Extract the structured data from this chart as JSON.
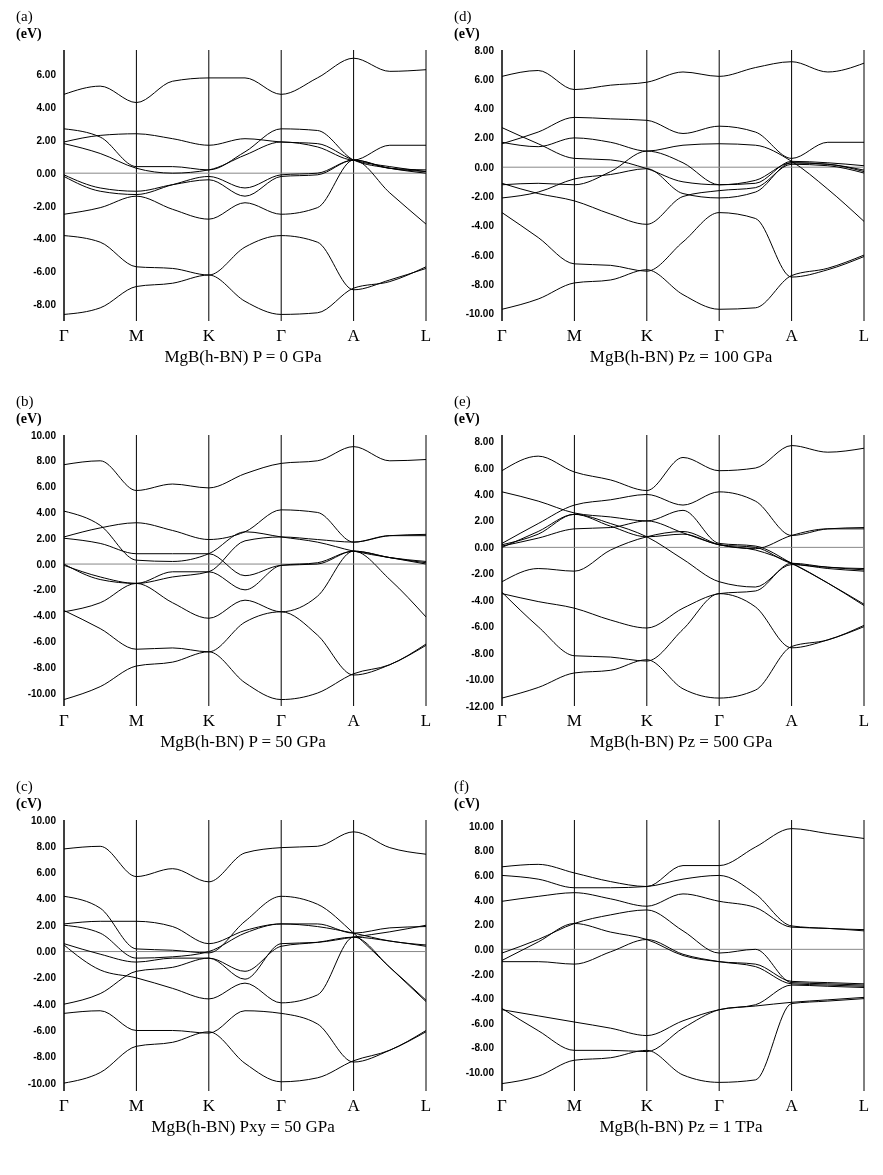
{
  "chart_data": [
    {
      "type": "line",
      "title": "(a)",
      "ylabel": "(eV)",
      "xlabel": "MgB(h-BN) P = 0 GPa",
      "categories": [
        "Γ",
        null,
        "M",
        null,
        "K",
        null,
        "Γ",
        null,
        "A",
        null,
        "L"
      ],
      "ylim": [
        -9,
        7.5
      ],
      "yticks": [
        {
          "value": -8,
          "label": "-8.00"
        },
        {
          "value": -6,
          "label": "-6.00"
        },
        {
          "value": -4,
          "label": "-4.00"
        },
        {
          "value": -2,
          "label": "-2.00"
        },
        {
          "value": 0,
          "label": "0.00"
        },
        {
          "value": 2,
          "label": "2.00"
        },
        {
          "value": 4,
          "label": "4.00"
        },
        {
          "value": 6,
          "label": "6.00"
        }
      ],
      "grid": "x",
      "marker": "none",
      "line_style": "solid",
      "ref_lines": [
        {
          "axis": "y",
          "value": 0,
          "color": "#888888"
        }
      ],
      "series": [
        {
          "color": "#000000",
          "values": [
            4.8,
            5.3,
            4.3,
            5.6,
            5.8,
            5.8,
            4.8,
            5.8,
            7.0,
            6.2,
            6.3
          ]
        },
        {
          "color": "#000000",
          "values": [
            1.9,
            2.3,
            2.4,
            2.1,
            1.7,
            2.1,
            1.9,
            1.8,
            0.8,
            0.4,
            0.1
          ]
        },
        {
          "color": "#000000",
          "values": [
            2.7,
            2.2,
            0.4,
            0.4,
            0.2,
            1.3,
            2.7,
            2.6,
            0.8,
            0.3,
            0.0
          ]
        },
        {
          "color": "#000000",
          "values": [
            1.8,
            1.2,
            0.3,
            0.0,
            0.2,
            1.1,
            1.9,
            1.6,
            0.8,
            1.7,
            1.7
          ]
        },
        {
          "color": "#000000",
          "values": [
            -0.2,
            -1.1,
            -1.3,
            -0.7,
            -0.2,
            -0.9,
            -0.1,
            0.0,
            0.8,
            0.3,
            0.1
          ]
        },
        {
          "color": "#000000",
          "values": [
            -0.1,
            -0.9,
            -1.1,
            -0.7,
            -0.4,
            -1.4,
            -0.2,
            -0.1,
            0.8,
            -1.2,
            -3.1
          ]
        },
        {
          "color": "#000000",
          "values": [
            -2.5,
            -2.1,
            -1.4,
            -2.2,
            -2.8,
            -1.8,
            -2.5,
            -2.1,
            0.8,
            0.3,
            0.2
          ]
        },
        {
          "color": "#000000",
          "values": [
            -3.8,
            -4.2,
            -5.7,
            -5.8,
            -6.2,
            -4.5,
            -3.8,
            -4.2,
            -7.1,
            -6.5,
            -5.8
          ]
        },
        {
          "color": "#000000",
          "values": [
            -8.6,
            -8.2,
            -6.9,
            -6.7,
            -6.2,
            -7.8,
            -8.6,
            -8.5,
            -7.0,
            -6.6,
            -5.7
          ]
        }
      ]
    },
    {
      "type": "line",
      "title": "(d)",
      "ylabel": "(eV)",
      "xlabel": "MgB(h-BN) Pz = 100 GPa",
      "categories": [
        "Γ",
        null,
        "M",
        null,
        "K",
        null,
        "Γ",
        null,
        "A",
        null,
        "L"
      ],
      "ylim": [
        -10.5,
        8
      ],
      "yticks": [
        {
          "value": -10,
          "label": "-10.00"
        },
        {
          "value": -8,
          "label": "-8.00"
        },
        {
          "value": -6,
          "label": "-6.00"
        },
        {
          "value": -4,
          "label": "-4.00"
        },
        {
          "value": -2,
          "label": "-2.00"
        },
        {
          "value": 0,
          "label": "0.00"
        },
        {
          "value": 2,
          "label": "2.00"
        },
        {
          "value": 4,
          "label": "4.00"
        },
        {
          "value": 6,
          "label": "6.00"
        },
        {
          "value": 8,
          "label": "8.00"
        }
      ],
      "grid": "x",
      "marker": "none",
      "line_style": "solid",
      "ref_lines": [
        {
          "axis": "y",
          "value": 0,
          "color": "#888888"
        }
      ],
      "series": [
        {
          "color": "#000000",
          "values": [
            6.2,
            6.6,
            5.3,
            5.6,
            5.8,
            6.5,
            6.2,
            6.8,
            7.2,
            6.5,
            7.1
          ]
        },
        {
          "color": "#000000",
          "values": [
            1.6,
            2.4,
            3.4,
            3.3,
            3.2,
            2.3,
            2.8,
            2.4,
            0.6,
            1.7,
            1.7
          ]
        },
        {
          "color": "#000000",
          "values": [
            2.7,
            1.6,
            0.6,
            0.5,
            -0.1,
            -1.0,
            -1.2,
            -0.9,
            0.3,
            0.2,
            -0.2
          ]
        },
        {
          "color": "#000000",
          "values": [
            1.7,
            1.4,
            2.0,
            1.7,
            1.1,
            1.5,
            1.6,
            1.5,
            0.4,
            -1.5,
            -3.7
          ]
        },
        {
          "color": "#000000",
          "values": [
            -1.2,
            -1.1,
            -1.2,
            -0.3,
            1.1,
            0.3,
            -1.2,
            -1.1,
            0.4,
            0.3,
            0.1
          ]
        },
        {
          "color": "#000000",
          "values": [
            -2.1,
            -1.7,
            -0.8,
            -0.5,
            -0.1,
            -1.8,
            -2.1,
            -1.7,
            0.3,
            0.2,
            -0.3
          ]
        },
        {
          "color": "#000000",
          "values": [
            -1.1,
            -1.8,
            -2.3,
            -3.2,
            -3.9,
            -2.0,
            -1.6,
            -1.4,
            0.2,
            0.1,
            -0.4
          ]
        },
        {
          "color": "#000000",
          "values": [
            -3.1,
            -4.8,
            -6.6,
            -6.7,
            -7.1,
            -5.1,
            -3.1,
            -3.5,
            -7.5,
            -7.0,
            -6.1
          ]
        },
        {
          "color": "#000000",
          "values": [
            -9.7,
            -9.0,
            -7.9,
            -7.7,
            -7.0,
            -8.7,
            -9.7,
            -9.6,
            -7.4,
            -6.9,
            -6.0
          ]
        }
      ]
    },
    {
      "type": "line",
      "title": "(b)",
      "ylabel": "(eV)",
      "xlabel": "MgB(h-BN) P = 50 GPa",
      "categories": [
        "Γ",
        null,
        "M",
        null,
        "K",
        null,
        "Γ",
        null,
        "A",
        null,
        "L"
      ],
      "ylim": [
        -11,
        10
      ],
      "yticks": [
        {
          "value": -10,
          "label": "-10.00"
        },
        {
          "value": -8,
          "label": "-8.00"
        },
        {
          "value": -6,
          "label": "-6.00"
        },
        {
          "value": -4,
          "label": "-4.00"
        },
        {
          "value": -2,
          "label": "-2.00"
        },
        {
          "value": 0,
          "label": "0.00"
        },
        {
          "value": 2,
          "label": "2.00"
        },
        {
          "value": 4,
          "label": "4.00"
        },
        {
          "value": 6,
          "label": "6.00"
        },
        {
          "value": 8,
          "label": "8.00"
        },
        {
          "value": 10,
          "label": "10.00"
        }
      ],
      "grid": "x",
      "marker": "none",
      "line_style": "solid",
      "ref_lines": [
        {
          "axis": "y",
          "value": 0,
          "color": "#888888"
        }
      ],
      "series": [
        {
          "color": "#000000",
          "values": [
            7.7,
            8.0,
            5.7,
            6.2,
            5.9,
            7.0,
            7.8,
            8.0,
            9.1,
            8.0,
            8.1
          ]
        },
        {
          "color": "#000000",
          "values": [
            2.1,
            2.8,
            3.2,
            2.6,
            1.9,
            2.5,
            4.2,
            4.0,
            1.7,
            2.2,
            2.2
          ]
        },
        {
          "color": "#000000",
          "values": [
            4.1,
            3.0,
            0.3,
            0.2,
            0.8,
            2.5,
            2.1,
            1.7,
            1.0,
            0.5,
            0.1
          ]
        },
        {
          "color": "#000000",
          "values": [
            2.0,
            1.6,
            0.8,
            0.8,
            0.8,
            -0.9,
            -0.1,
            0.0,
            1.0,
            0.5,
            0.0
          ]
        },
        {
          "color": "#000000",
          "values": [
            -0.1,
            -1.0,
            -1.5,
            -0.6,
            -0.6,
            -2.0,
            -0.1,
            0.1,
            1.0,
            -1.2,
            -4.1
          ]
        },
        {
          "color": "#000000",
          "values": [
            0.0,
            -1.2,
            -1.5,
            -1.0,
            -0.6,
            1.8,
            2.1,
            1.9,
            1.7,
            2.2,
            2.3
          ]
        },
        {
          "color": "#000000",
          "values": [
            -3.7,
            -3.0,
            -1.5,
            -3.0,
            -4.2,
            -2.8,
            -3.7,
            -2.5,
            1.0,
            0.5,
            0.2
          ]
        },
        {
          "color": "#000000",
          "values": [
            -3.6,
            -5.0,
            -6.6,
            -6.5,
            -6.8,
            -4.5,
            -3.7,
            -5.5,
            -8.6,
            -7.8,
            -6.3
          ]
        },
        {
          "color": "#000000",
          "values": [
            -10.5,
            -9.5,
            -7.9,
            -7.6,
            -6.8,
            -9.2,
            -10.5,
            -10.0,
            -8.5,
            -7.8,
            -6.2
          ]
        }
      ]
    },
    {
      "type": "line",
      "title": "(e)",
      "ylabel": "(eV)",
      "xlabel": "MgB(h-BN) Pz = 500 GPa",
      "categories": [
        "Γ",
        null,
        "M",
        null,
        "K",
        null,
        "Γ",
        null,
        "A",
        null,
        "L"
      ],
      "ylim": [
        -12,
        8.5
      ],
      "yticks": [
        {
          "value": -12,
          "label": "-12.00"
        },
        {
          "value": -10,
          "label": "-10.00"
        },
        {
          "value": -8,
          "label": "-8.00"
        },
        {
          "value": -6,
          "label": "-6.00"
        },
        {
          "value": -4,
          "label": "-4.00"
        },
        {
          "value": -2,
          "label": "-2.00"
        },
        {
          "value": 0,
          "label": "0.00"
        },
        {
          "value": 2,
          "label": "2.00"
        },
        {
          "value": 4,
          "label": "4.00"
        },
        {
          "value": 6,
          "label": "6.00"
        },
        {
          "value": 8,
          "label": "8.00"
        }
      ],
      "grid": "x",
      "marker": "none",
      "line_style": "solid",
      "ref_lines": [
        {
          "axis": "y",
          "value": 0,
          "color": "#888888"
        }
      ],
      "series": [
        {
          "color": "#000000",
          "values": [
            5.8,
            6.9,
            5.7,
            5.1,
            4.3,
            6.8,
            5.8,
            6.0,
            7.7,
            7.2,
            7.5
          ]
        },
        {
          "color": "#000000",
          "values": [
            4.2,
            3.5,
            2.6,
            2.3,
            2.0,
            2.8,
            0.3,
            0.1,
            -1.2,
            -2.7,
            -4.3
          ]
        },
        {
          "color": "#000000",
          "values": [
            0.3,
            1.8,
            3.2,
            3.6,
            4.0,
            3.2,
            4.2,
            3.5,
            0.9,
            1.4,
            1.5
          ]
        },
        {
          "color": "#000000",
          "values": [
            0.2,
            1.0,
            2.5,
            1.6,
            0.8,
            1.0,
            0.2,
            0.0,
            -1.2,
            -1.5,
            -1.7
          ]
        },
        {
          "color": "#000000",
          "values": [
            0.1,
            0.7,
            1.4,
            1.5,
            2.0,
            1.1,
            0.2,
            -0.1,
            0.9,
            1.4,
            1.4
          ]
        },
        {
          "color": "#000000",
          "values": [
            0.0,
            1.2,
            2.5,
            1.8,
            0.8,
            -0.9,
            -2.6,
            -3.0,
            -1.3,
            -1.6,
            -1.8
          ]
        },
        {
          "color": "#000000",
          "values": [
            -2.6,
            -1.6,
            -1.8,
            -0.2,
            0.8,
            1.2,
            0.2,
            -0.2,
            -1.2,
            -2.7,
            -4.4
          ]
        },
        {
          "color": "#000000",
          "values": [
            -3.5,
            -4.1,
            -4.6,
            -5.5,
            -6.1,
            -4.6,
            -3.5,
            -3.3,
            -1.2,
            -1.5,
            -1.6
          ]
        },
        {
          "color": "#000000",
          "values": [
            -3.4,
            -6.0,
            -8.2,
            -8.3,
            -8.6,
            -6.2,
            -3.5,
            -4.5,
            -7.6,
            -7.0,
            -6.0
          ]
        },
        {
          "color": "#000000",
          "values": [
            -11.4,
            -10.6,
            -9.5,
            -9.3,
            -8.5,
            -10.7,
            -11.4,
            -10.8,
            -7.5,
            -7.0,
            -5.9
          ]
        }
      ]
    },
    {
      "type": "line",
      "title": "(c)",
      "ylabel": "(cV)",
      "xlabel": "MgB(h-BN) Pxy = 50 GPa",
      "categories": [
        "Γ",
        null,
        "M",
        null,
        "K",
        null,
        "Γ",
        null,
        "A",
        null,
        "L"
      ],
      "ylim": [
        -10.6,
        10
      ],
      "yticks": [
        {
          "value": -10,
          "label": "-10.00"
        },
        {
          "value": -8,
          "label": "-8.00"
        },
        {
          "value": -6,
          "label": "-6.00"
        },
        {
          "value": -4,
          "label": "-4.00"
        },
        {
          "value": -2,
          "label": "-2.00"
        },
        {
          "value": 0,
          "label": "0.00"
        },
        {
          "value": 2,
          "label": "2.00"
        },
        {
          "value": 4,
          "label": "4.00"
        },
        {
          "value": 6,
          "label": "6.00"
        },
        {
          "value": 8,
          "label": "8.00"
        },
        {
          "value": 10,
          "label": "10.00"
        }
      ],
      "grid": "x",
      "marker": "none",
      "line_style": "solid",
      "ref_lines": [
        {
          "axis": "y",
          "value": 0,
          "color": "#888888"
        }
      ],
      "series": [
        {
          "color": "#000000",
          "values": [
            7.8,
            8.0,
            5.7,
            6.3,
            5.3,
            7.5,
            7.9,
            8.0,
            9.1,
            7.9,
            7.4
          ]
        },
        {
          "color": "#000000",
          "values": [
            4.2,
            3.3,
            0.2,
            0.1,
            -0.1,
            2.3,
            4.2,
            3.6,
            1.4,
            -1.2,
            -3.8
          ]
        },
        {
          "color": "#000000",
          "values": [
            2.1,
            2.3,
            2.3,
            1.9,
            0.6,
            1.6,
            2.1,
            2.1,
            1.4,
            1.8,
            1.9
          ]
        },
        {
          "color": "#000000",
          "values": [
            2.0,
            1.4,
            -0.5,
            -0.4,
            0.0,
            1.4,
            2.1,
            1.9,
            1.4,
            0.8,
            0.5
          ]
        },
        {
          "color": "#000000",
          "values": [
            0.6,
            -0.2,
            -0.8,
            -0.5,
            -0.5,
            -1.5,
            0.4,
            0.7,
            1.1,
            0.8,
            0.4
          ]
        },
        {
          "color": "#000000",
          "values": [
            0.5,
            -1.4,
            -2.0,
            -2.8,
            -3.6,
            -2.4,
            -3.9,
            -3.3,
            1.1,
            -1.2,
            -3.7
          ]
        },
        {
          "color": "#000000",
          "values": [
            -4.0,
            -3.2,
            -1.5,
            -1.2,
            -0.5,
            -2.1,
            0.6,
            0.7,
            1.1,
            1.5,
            2.0
          ]
        },
        {
          "color": "#000000",
          "values": [
            -4.7,
            -4.5,
            -6.0,
            -6.0,
            -6.2,
            -4.5,
            -4.7,
            -5.5,
            -8.4,
            -7.5,
            -6.1
          ]
        },
        {
          "color": "#000000",
          "values": [
            -10.0,
            -9.2,
            -7.2,
            -6.9,
            -6.1,
            -8.5,
            -9.9,
            -9.6,
            -8.3,
            -7.5,
            -6.0
          ]
        }
      ]
    },
    {
      "type": "line",
      "title": "(f)",
      "ylabel": "(cV)",
      "xlabel": "MgB(h-BN) Pz = 1 TPa",
      "categories": [
        "Γ",
        null,
        "M",
        null,
        "K",
        null,
        "Γ",
        null,
        "A",
        null,
        "L"
      ],
      "ylim": [
        -11.5,
        10.5
      ],
      "yticks": [
        {
          "value": -10,
          "label": "-10.00"
        },
        {
          "value": -8,
          "label": "-8.00"
        },
        {
          "value": -6,
          "label": "-6.00"
        },
        {
          "value": -4,
          "label": "-4.00"
        },
        {
          "value": -2,
          "label": "-2.00"
        },
        {
          "value": 0,
          "label": "0.00"
        },
        {
          "value": 2,
          "label": "2.00"
        },
        {
          "value": 4,
          "label": "4.00"
        },
        {
          "value": 6,
          "label": "6.00"
        },
        {
          "value": 8,
          "label": "8.00"
        },
        {
          "value": 10,
          "label": "10.00"
        }
      ],
      "grid": "x",
      "marker": "none",
      "line_style": "solid",
      "ref_lines": [
        {
          "axis": "y",
          "value": 0,
          "color": "#888888"
        }
      ],
      "series": [
        {
          "color": "#000000",
          "values": [
            6.7,
            6.9,
            6.2,
            5.5,
            5.1,
            6.8,
            6.8,
            8.3,
            9.8,
            9.4,
            9.0
          ]
        },
        {
          "color": "#000000",
          "values": [
            6.0,
            5.7,
            5.0,
            5.0,
            5.1,
            5.7,
            6.0,
            4.5,
            1.9,
            1.7,
            1.6
          ]
        },
        {
          "color": "#000000",
          "values": [
            3.9,
            4.3,
            4.6,
            4.1,
            3.5,
            4.5,
            3.9,
            3.4,
            1.8,
            1.7,
            1.5
          ]
        },
        {
          "color": "#000000",
          "values": [
            -0.3,
            0.8,
            2.1,
            2.8,
            3.2,
            1.5,
            -0.3,
            0.0,
            -2.7,
            -2.8,
            -2.9
          ]
        },
        {
          "color": "#000000",
          "values": [
            -0.9,
            0.6,
            2.1,
            1.4,
            0.8,
            -0.5,
            -1.0,
            -1.2,
            -2.6,
            -2.7,
            -2.8
          ]
        },
        {
          "color": "#000000",
          "values": [
            -1.0,
            -1.0,
            -1.2,
            -0.2,
            0.8,
            -0.4,
            -1.0,
            -1.4,
            -2.8,
            -2.9,
            -3.0
          ]
        },
        {
          "color": "#000000",
          "values": [
            -4.9,
            -5.4,
            -5.9,
            -6.4,
            -7.0,
            -5.8,
            -4.9,
            -4.6,
            -4.3,
            -4.1,
            -3.9
          ]
        },
        {
          "color": "#000000",
          "values": [
            -4.8,
            -6.6,
            -8.2,
            -8.2,
            -8.3,
            -6.4,
            -4.9,
            -4.5,
            -2.9,
            -3.0,
            -3.1
          ]
        },
        {
          "color": "#000000",
          "values": [
            -10.9,
            -10.3,
            -9.0,
            -8.8,
            -8.2,
            -10.2,
            -10.8,
            -10.6,
            -4.4,
            -4.2,
            -4.0
          ]
        }
      ]
    }
  ]
}
